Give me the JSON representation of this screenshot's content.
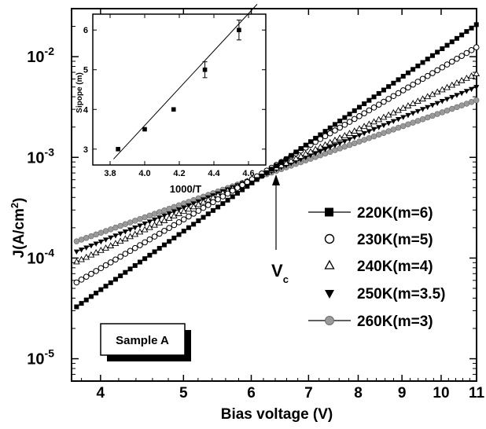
{
  "chart_data": [
    {
      "type": "scatter",
      "xlabel": "Bias voltage (V)",
      "ylabel_main": "J(A/cm",
      "ylabel_sup": "2",
      "ylabel_close": ")",
      "xscale": "log",
      "yscale": "log",
      "xlim": [
        3.7,
        11
      ],
      "ylim": [
        6e-06,
        0.03
      ],
      "x_ticks": [
        {
          "value": 4,
          "label": "4"
        },
        {
          "value": 5,
          "label": "5"
        },
        {
          "value": 6,
          "label": "6"
        },
        {
          "value": 7,
          "label": "7"
        },
        {
          "value": 8,
          "label": "8"
        },
        {
          "value": 9,
          "label": "9"
        },
        {
          "value": 10,
          "label": "10"
        },
        {
          "value": 11,
          "label": "11"
        }
      ],
      "y_ticks": [
        {
          "value": 1e-05,
          "base": "10",
          "exp": "-5"
        },
        {
          "value": 0.0001,
          "base": "10",
          "exp": "-4"
        },
        {
          "value": 0.001,
          "base": "10",
          "exp": "-3"
        },
        {
          "value": 0.01,
          "base": "10",
          "exp": "-2"
        }
      ],
      "series": [
        {
          "name": "220K(m=6)",
          "marker": "filled-square",
          "color": "#000000",
          "x_start": 3.75,
          "x_end": 11,
          "J_at_6V": 0.00055,
          "slope": 6
        },
        {
          "name": "230K(m=5)",
          "marker": "open-circle",
          "color": "#000000",
          "x_start": 3.75,
          "x_end": 11,
          "J_at_6V": 0.0006,
          "slope": 5
        },
        {
          "name": "240K(m=4)",
          "marker": "open-triangle",
          "color": "#000000",
          "x_start": 3.75,
          "x_end": 11,
          "J_at_6V": 0.0006,
          "slope": 4
        },
        {
          "name": "250K(m=3.5)",
          "marker": "filled-triangle-down",
          "color": "#000000",
          "x_start": 3.75,
          "x_end": 11,
          "J_at_6V": 0.0006,
          "slope": 3.5
        },
        {
          "name": "260K(m=3)",
          "marker": "gray-circle",
          "color": "#9a9a9a",
          "x_start": 3.75,
          "x_end": 11,
          "J_at_6V": 0.0006,
          "slope": 3
        }
      ],
      "annotations": {
        "vc_main": "V",
        "vc_sub": "c",
        "vc_x": 6.5,
        "sample": "Sample A"
      },
      "legend_position": "right"
    },
    {
      "type": "scatter",
      "xlabel": "1000/T",
      "ylabel": "Sipope (m)",
      "xlim": [
        3.7,
        4.7
      ],
      "ylim": [
        2.6,
        6.4
      ],
      "x_ticks": [
        "3.8",
        "4.0",
        "4.2",
        "4.4",
        "4.6"
      ],
      "y_ticks": [
        "3",
        "4",
        "5",
        "6"
      ],
      "points": [
        {
          "x": 3.846,
          "y": 3.0,
          "err": 0
        },
        {
          "x": 4.0,
          "y": 3.5,
          "err": 0
        },
        {
          "x": 4.167,
          "y": 4.0,
          "err": 0
        },
        {
          "x": 4.348,
          "y": 5.0,
          "err": 0.2
        },
        {
          "x": 4.545,
          "y": 6.0,
          "err": 0.25
        }
      ],
      "fit": {
        "x": [
          3.82,
          4.65
        ],
        "y": [
          2.75,
          6.65
        ]
      }
    }
  ]
}
